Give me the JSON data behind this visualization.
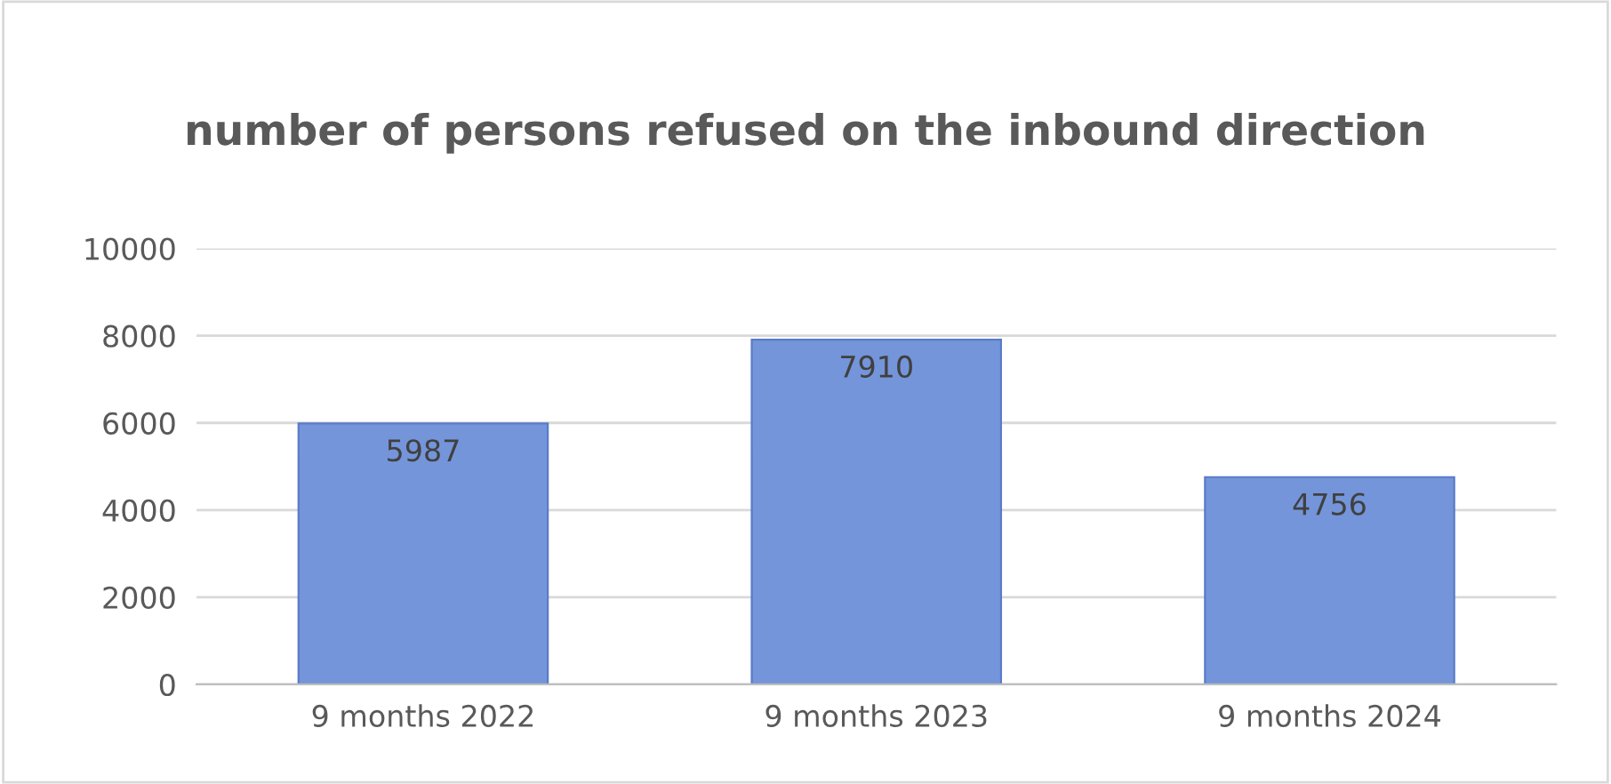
{
  "chart_data": {
    "type": "bar",
    "title": "number of persons refused on the inbound direction",
    "categories": [
      "9 months 2022",
      "9 months 2023",
      "9 months 2024"
    ],
    "values": [
      5987,
      7910,
      4756
    ],
    "color": "#7495da",
    "ylim": [
      0,
      10000
    ],
    "yticks": [
      0,
      2000,
      4000,
      6000,
      8000,
      10000
    ],
    "grid": "y",
    "data_labels": true
  }
}
